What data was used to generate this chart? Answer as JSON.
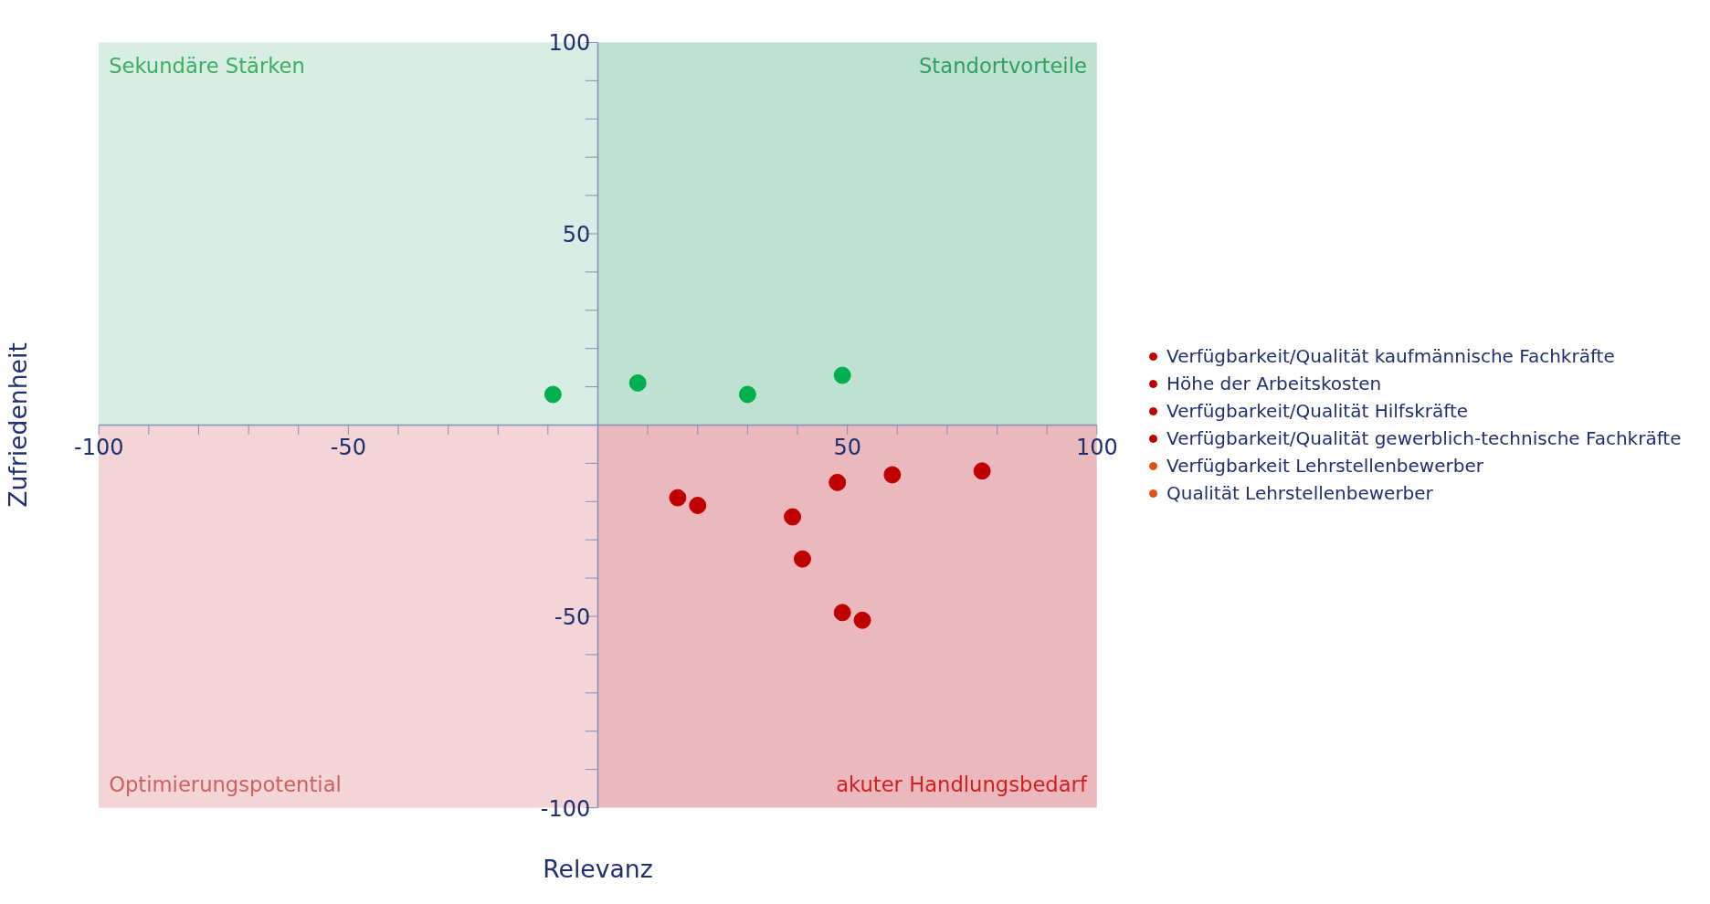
{
  "chart_data": {
    "type": "scatter",
    "xlabel": "Relevanz",
    "ylabel": "Zufriedenheit",
    "xlim": [
      -100,
      100
    ],
    "ylim": [
      -100,
      100
    ],
    "xticks": [
      -100,
      {
        "value": -90,
        "label": null
      },
      {
        "value": -80,
        "label": null
      },
      {
        "value": -70,
        "label": null
      },
      {
        "value": -60,
        "label": null
      },
      -50,
      {
        "value": -40,
        "label": null
      },
      {
        "value": -30,
        "label": null
      },
      {
        "value": -20,
        "label": null
      },
      {
        "value": -10,
        "label": null
      },
      {
        "value": 0,
        "label": null
      },
      {
        "value": 10,
        "label": null
      },
      {
        "value": 20,
        "label": null
      },
      {
        "value": 30,
        "label": null
      },
      {
        "value": 40,
        "label": null
      },
      50,
      {
        "value": 60,
        "label": null
      },
      {
        "value": 70,
        "label": null
      },
      {
        "value": 80,
        "label": null
      },
      {
        "value": 90,
        "label": null
      },
      100
    ],
    "yticks": [
      -100,
      {
        "value": -90,
        "label": null
      },
      {
        "value": -80,
        "label": null
      },
      {
        "value": -70,
        "label": null
      },
      {
        "value": -60,
        "label": null
      },
      -50,
      {
        "value": -40,
        "label": null
      },
      {
        "value": -30,
        "label": null
      },
      {
        "value": -20,
        "label": null
      },
      {
        "value": -10,
        "label": null
      },
      {
        "value": 0,
        "label": null
      },
      {
        "value": 10,
        "label": null
      },
      {
        "value": 20,
        "label": null
      },
      {
        "value": 30,
        "label": null
      },
      {
        "value": 40,
        "label": null
      },
      50,
      {
        "value": 60,
        "label": null
      },
      {
        "value": 70,
        "label": null
      },
      {
        "value": 80,
        "label": null
      },
      {
        "value": 90,
        "label": null
      },
      100
    ],
    "marker": "circle",
    "grid": false,
    "legend": "right",
    "bands": [
      {
        "axis": "y",
        "from": 0,
        "to": 100,
        "color": "#bfe1d1"
      },
      {
        "axis": "y",
        "from": -100,
        "to": 0,
        "color": "#ebb9bd"
      },
      {
        "axis": "x",
        "from": -100,
        "to": 0,
        "color": "#ffffff"
      }
    ],
    "annotations": [
      "Sekundäre Stärken",
      "Standortvorteile",
      "Optimierungspotential",
      "akuter Handlungsbedarf"
    ],
    "series": [
      {
        "color": "#00b050",
        "x": [
          -9,
          8,
          30,
          49
        ],
        "values": [
          8,
          11,
          8,
          13
        ]
      },
      {
        "color": "#c00000",
        "x": [
          16,
          20,
          39,
          41,
          48,
          59,
          77,
          49,
          53
        ],
        "values": [
          -19,
          -21,
          -24,
          -35,
          -15,
          -13,
          -12,
          -49,
          -51
        ]
      },
      {
        "name": "Verfügbarkeit/Qualität kaufmännische Fachkräfte",
        "color": "#c00000"
      },
      {
        "name": "Höhe der Arbeitskosten",
        "color": "#c00000"
      },
      {
        "name": "Verfügbarkeit/Qualität Hilfskräfte",
        "color": "#c00000"
      },
      {
        "name": "Verfügbarkeit/Qualität gewerblich-technische Fachkräfte",
        "color": "#c00000"
      },
      {
        "name": "Verfügbarkeit Lehrstellenbewerber",
        "color": "#e05010"
      },
      {
        "name": "Qualität Lehrstellenbewerber",
        "color": "#e05010"
      }
    ]
  }
}
